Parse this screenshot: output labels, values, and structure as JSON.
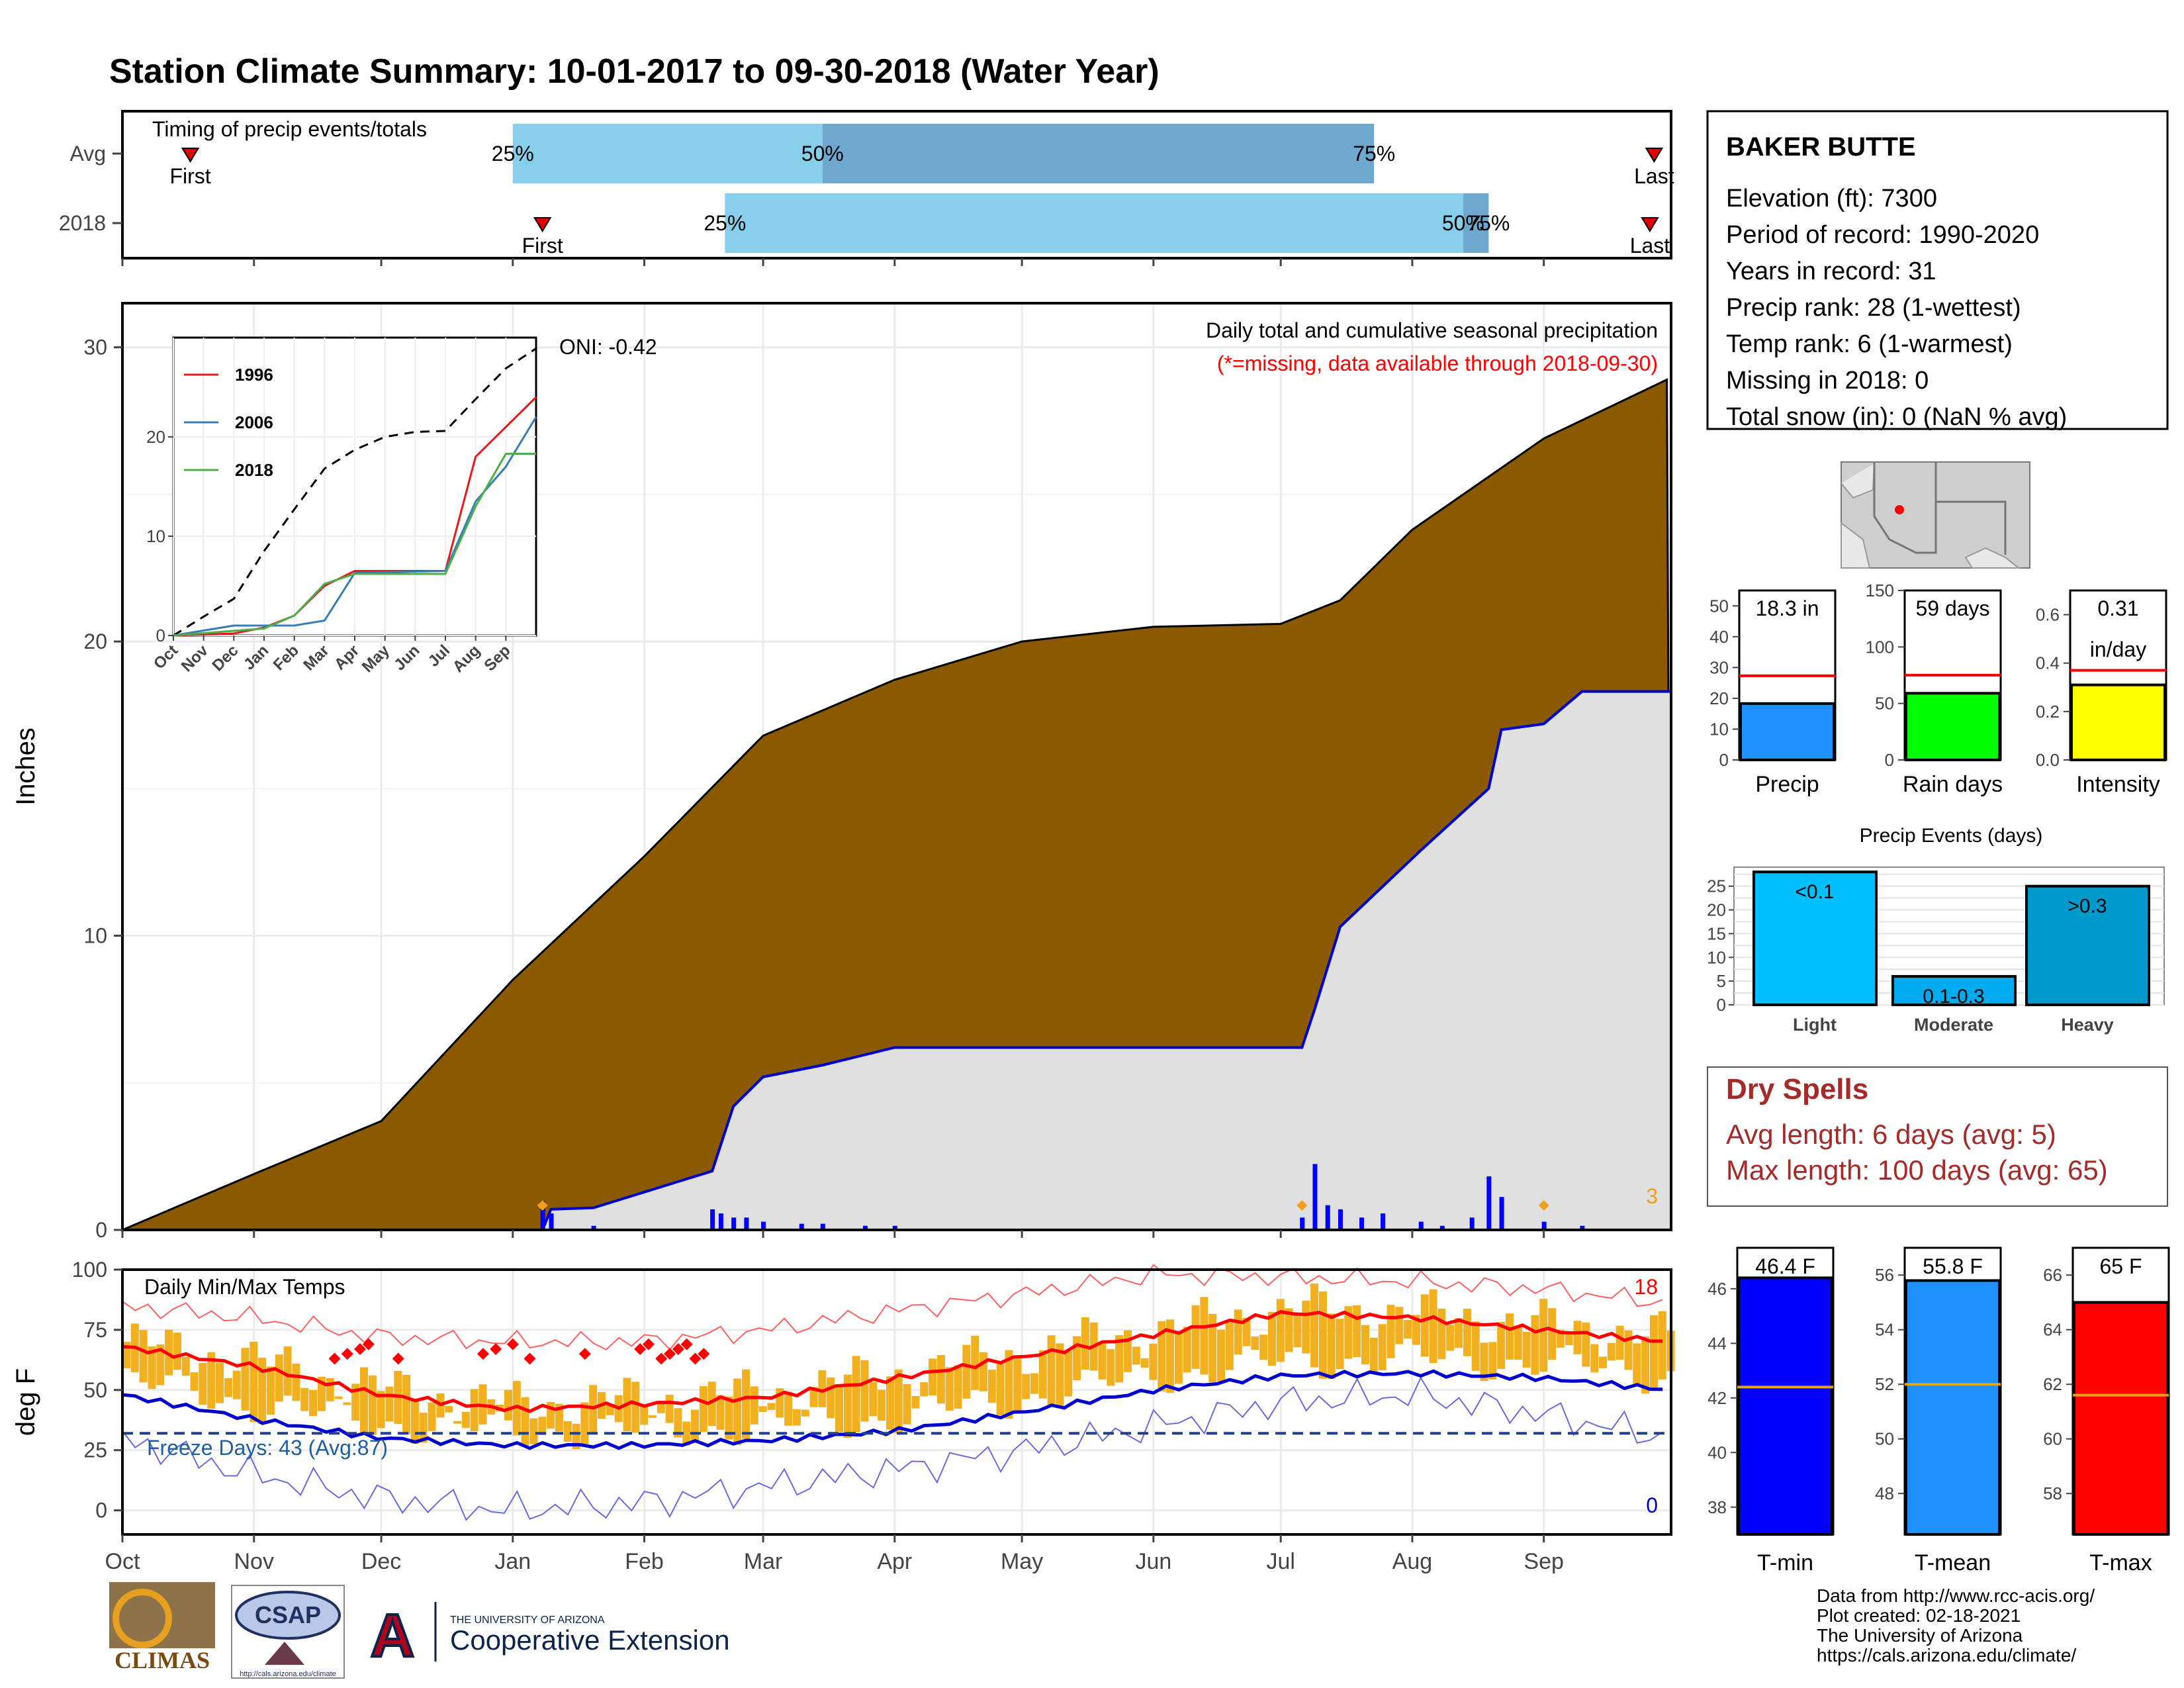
{
  "title": "Station Climate Summary: 10-01-2017 to 09-30-2018 (Water Year)",
  "months": [
    "Oct",
    "Nov",
    "Dec",
    "Jan",
    "Feb",
    "Mar",
    "Apr",
    "May",
    "Jun",
    "Jul",
    "Aug",
    "Sep"
  ],
  "timing": {
    "label": "Timing of precip events/totals",
    "rows": [
      {
        "name": "Avg",
        "first_label": "First",
        "last_label": "Last",
        "p25": "25%",
        "p50": "50%",
        "p75": "75%"
      },
      {
        "name": "2018",
        "first_label": "First",
        "last_label": "Last",
        "p25": "25%",
        "p50": "50%",
        "p75": "75%"
      }
    ]
  },
  "precip_panel": {
    "ylabel": "Inches",
    "yticks": [
      "0",
      "10",
      "20",
      "30"
    ],
    "caption": "Daily total and cumulative seasonal precipitation",
    "missing_note": "(*=missing, data available through 2018-09-30)",
    "oni": "ONI: -0.42",
    "corner_count": "3",
    "inset": {
      "yticks": [
        "0",
        "10",
        "20"
      ],
      "xticks": [
        "Oct",
        "Nov",
        "Dec",
        "Jan",
        "Feb",
        "Mar",
        "Apr",
        "May",
        "Jun",
        "Jul",
        "Aug",
        "Sep"
      ],
      "legend": [
        {
          "name": "1996",
          "color": "#e41a1c"
        },
        {
          "name": "2006",
          "color": "#377eb8"
        },
        {
          "name": "2018",
          "color": "#4daf4a"
        }
      ]
    }
  },
  "temp_panel": {
    "ylabel": "deg F",
    "yticks": [
      "0",
      "25",
      "50",
      "75",
      "100"
    ],
    "caption": "Daily Min/Max Temps",
    "freeze_label": "Freeze Days: 43 (Avg:87)",
    "record_high_count": "18",
    "record_low_count": "0"
  },
  "station": {
    "name": "BAKER BUTTE",
    "lines": [
      "Elevation (ft): 7300",
      "Period of record: 1990-2020",
      "Years in record: 31",
      "Precip rank: 28 (1-wettest)",
      "Temp rank: 6 (1-warmest)",
      "Missing in 2018: 0",
      "Total snow (in): 0 (NaN % avg)"
    ]
  },
  "mini_bars": [
    {
      "label": "Precip",
      "value_text": "18.3 in",
      "yticks": [
        "0",
        "10",
        "20",
        "30",
        "40",
        "50"
      ]
    },
    {
      "label": "Rain days",
      "value_text": "59 days",
      "yticks": [
        "0",
        "50",
        "100",
        "150"
      ]
    },
    {
      "label": "Intensity",
      "value_text": "0.31",
      "value_unit": "in/day",
      "yticks": [
        "0.0",
        "0.2",
        "0.4",
        "0.6"
      ]
    }
  ],
  "events": {
    "title": "Precip Events (days)",
    "yticks": [
      "0",
      "5",
      "10",
      "15",
      "20",
      "25"
    ],
    "bars": [
      {
        "label": "Light",
        "text": "<0.1"
      },
      {
        "label": "Moderate",
        "text": "0.1-0.3"
      },
      {
        "label": "Heavy",
        "text": ">0.3"
      }
    ]
  },
  "dry_spells": {
    "title": "Dry Spells",
    "avg": "Avg length: 6 days (avg: 5)",
    "max": "Max length: 100 days (avg: 65)"
  },
  "temp_bars": [
    {
      "label": "T-min",
      "value_text": "46.4 F",
      "yticks": [
        "38",
        "40",
        "42",
        "44",
        "46"
      ]
    },
    {
      "label": "T-mean",
      "value_text": "55.8 F",
      "yticks": [
        "48",
        "50",
        "52",
        "54",
        "56"
      ]
    },
    {
      "label": "T-max",
      "value_text": "65 F",
      "yticks": [
        "58",
        "60",
        "62",
        "64",
        "66"
      ]
    }
  ],
  "credits": [
    "Data from http://www.rcc-acis.org/",
    "Plot created: 02-18-2021",
    "The University of Arizona",
    "https://cals.arizona.edu/climate/"
  ],
  "logos": {
    "climas": "CLIMAS",
    "csap": "CSAP",
    "csap_url": "http://cals.arizona.edu/climate",
    "ua_small": "THE UNIVERSITY OF ARIZONA",
    "ua_big": "Cooperative Extension"
  },
  "colors": {
    "title": "#8b2500",
    "brown": "#8b5a00",
    "gray": "#e0e0e0",
    "cum_line": "#0000cd",
    "daily_bar": "#0000ff",
    "temp_bar": "#f0b020",
    "avg_max": "#ff0000",
    "avg_min": "#0000cd",
    "record_high": "#ff6060",
    "record_low": "#6a6ae0",
    "freeze_line": "#1f3f8f",
    "light_blue": "#87ceeb",
    "mid_blue": "#6fa8cf",
    "precip_bar": "#1e90ff",
    "rain_days_bar": "#00ff00",
    "intensity_bar": "#ffff00",
    "light_bar": "#00bfff",
    "moderate_bar": "#00aaee",
    "heavy_bar": "#0099cc",
    "tmin_bar": "#0000ff",
    "tmean_bar": "#1e90ff",
    "tmax_bar": "#ff0000",
    "dry_spell_text": "#a52a2a"
  },
  "chart_data": [
    {
      "type": "bar",
      "name": "timing",
      "rows": [
        {
          "name": "Avg",
          "first": "2017-10-17",
          "p25": "2018-01-01",
          "p50": "2018-03-15",
          "p75": "2018-07-23",
          "last": "2018-09-27"
        },
        {
          "name": "2018",
          "first": "2018-01-08",
          "p25": "2018-02-20",
          "p50": "2018-08-13",
          "p75": "2018-08-19",
          "last": "2018-09-26"
        }
      ]
    },
    {
      "type": "area",
      "name": "cumulative_precip",
      "ylabel": "Inches",
      "ylim": [
        0,
        31.5
      ],
      "series": [
        {
          "name": "Average cumulative",
          "dates": [
            "2017-10-01",
            "2017-11-01",
            "2017-12-01",
            "2018-01-01",
            "2018-02-01",
            "2018-03-01",
            "2018-04-01",
            "2018-05-01",
            "2018-06-01",
            "2018-07-01",
            "2018-07-15",
            "2018-08-01",
            "2018-09-01",
            "2018-09-30"
          ],
          "values": [
            0.0,
            1.9,
            3.7,
            8.5,
            12.7,
            16.8,
            18.7,
            20.0,
            20.5,
            20.6,
            21.4,
            23.8,
            26.9,
            28.9
          ]
        },
        {
          "name": "2018 cumulative",
          "dates": [
            "2017-10-01",
            "2018-01-08",
            "2018-01-10",
            "2018-01-20",
            "2018-02-17",
            "2018-02-22",
            "2018-03-01",
            "2018-03-15",
            "2018-04-01",
            "2018-07-06",
            "2018-07-09",
            "2018-07-15",
            "2018-08-03",
            "2018-08-19",
            "2018-08-22",
            "2018-09-01",
            "2018-09-10",
            "2018-09-30"
          ],
          "values": [
            0.0,
            0.0,
            0.7,
            0.75,
            2.0,
            4.2,
            5.2,
            5.6,
            6.2,
            6.2,
            7.5,
            10.3,
            12.9,
            15.0,
            17.0,
            17.2,
            18.3,
            18.3
          ]
        }
      ],
      "daily_bars_dates": [
        "2018-01-08",
        "2018-01-10",
        "2018-01-20",
        "2018-02-17",
        "2018-02-19",
        "2018-02-22",
        "2018-02-25",
        "2018-03-01",
        "2018-03-10",
        "2018-03-15",
        "2018-03-25",
        "2018-04-01",
        "2018-07-06",
        "2018-07-09",
        "2018-07-12",
        "2018-07-15",
        "2018-07-20",
        "2018-07-25",
        "2018-08-03",
        "2018-08-08",
        "2018-08-15",
        "2018-08-19",
        "2018-08-22",
        "2018-09-01",
        "2018-09-10"
      ],
      "daily_bars_values": [
        0.7,
        0.4,
        0.1,
        0.5,
        0.4,
        0.3,
        0.3,
        0.2,
        0.15,
        0.15,
        0.1,
        0.1,
        0.3,
        1.6,
        0.6,
        0.5,
        0.3,
        0.4,
        0.2,
        0.1,
        0.3,
        1.3,
        0.8,
        0.2,
        0.1
      ]
    },
    {
      "type": "line",
      "name": "inset_cumulative",
      "ylim": [
        0,
        30
      ],
      "series": [
        {
          "name": "Average",
          "months": [
            "Oct",
            "Nov",
            "Dec",
            "Jan",
            "Feb",
            "Mar",
            "Apr",
            "May",
            "Jun",
            "Jul",
            "Aug",
            "Sep",
            "Oct-end"
          ],
          "values": [
            0,
            1.9,
            3.7,
            8.5,
            12.7,
            16.8,
            18.7,
            20.0,
            20.5,
            20.6,
            23.8,
            26.9,
            28.9
          ]
        },
        {
          "name": "1996",
          "months": [
            "Oct",
            "Dec",
            "Jan",
            "Feb",
            "Mar",
            "Apr",
            "Jul",
            "Aug",
            "Sep",
            "Oct-end"
          ],
          "values": [
            0,
            0.2,
            0.8,
            2.0,
            5.0,
            6.5,
            6.5,
            18.0,
            21.0,
            24.0
          ]
        },
        {
          "name": "2006",
          "months": [
            "Oct",
            "Dec",
            "Jan",
            "Feb",
            "Mar",
            "Apr",
            "Jul",
            "Aug",
            "Sep",
            "Oct-end"
          ],
          "values": [
            0,
            1.0,
            1.0,
            1.0,
            1.5,
            6.3,
            6.5,
            13.5,
            17.0,
            22.0
          ]
        },
        {
          "name": "2018",
          "months": [
            "Oct",
            "Jan",
            "Feb",
            "Mar",
            "Apr",
            "Jul",
            "Aug",
            "Sep",
            "Oct-end"
          ],
          "values": [
            0,
            0.7,
            2.0,
            5.2,
            6.2,
            6.2,
            13.0,
            18.3,
            18.3
          ]
        }
      ]
    },
    {
      "type": "line",
      "name": "temperatures",
      "ylabel": "deg F",
      "ylim": [
        -10,
        100
      ],
      "series": [
        {
          "name": "Avg max",
          "months": [
            "Oct",
            "Nov",
            "Dec",
            "Jan",
            "Feb",
            "Mar",
            "Apr",
            "May",
            "Jun",
            "Jul",
            "Aug",
            "Sep",
            "Oct-end"
          ],
          "values": [
            68,
            60,
            48,
            42,
            44,
            47,
            55,
            64,
            73,
            82,
            80,
            75,
            70
          ]
        },
        {
          "name": "Avg min",
          "months": [
            "Oct",
            "Nov",
            "Dec",
            "Jan",
            "Feb",
            "Mar",
            "Apr",
            "May",
            "Jun",
            "Jul",
            "Aug",
            "Sep",
            "Oct-end"
          ],
          "values": [
            48,
            38,
            30,
            27,
            27,
            29,
            33,
            41,
            50,
            56,
            57,
            55,
            50
          ]
        },
        {
          "name": "Record max",
          "months": [
            "Oct",
            "Nov",
            "Dec",
            "Jan",
            "Feb",
            "Mar",
            "Apr",
            "May",
            "Jun",
            "Jul",
            "Aug",
            "Sep",
            "Oct-end"
          ],
          "values": [
            85,
            80,
            72,
            70,
            70,
            75,
            83,
            90,
            98,
            97,
            95,
            92,
            86
          ]
        },
        {
          "name": "Record min",
          "months": [
            "Oct",
            "Nov",
            "Dec",
            "Jan",
            "Feb",
            "Mar",
            "Apr",
            "May",
            "Jun",
            "Jul",
            "Aug",
            "Sep",
            "Oct-end"
          ],
          "values": [
            30,
            15,
            5,
            0,
            3,
            10,
            17,
            25,
            35,
            45,
            48,
            40,
            30
          ]
        }
      ],
      "freeze_threshold": 32
    },
    {
      "type": "bar",
      "name": "season_totals",
      "categories": [
        "Precip",
        "Rain days",
        "Intensity"
      ],
      "values": [
        18.3,
        59,
        0.31
      ],
      "averages": [
        27.3,
        75,
        0.37
      ],
      "ylims": [
        [
          0,
          55
        ],
        [
          0,
          150
        ],
        [
          0,
          0.7
        ]
      ]
    },
    {
      "type": "bar",
      "name": "precip_events",
      "title": "Precip Events (days)",
      "categories": [
        "Light",
        "Moderate",
        "Heavy"
      ],
      "values": [
        28,
        6,
        25
      ],
      "ylim": [
        0,
        29
      ]
    },
    {
      "type": "bar",
      "name": "temperature_means",
      "categories": [
        "T-min",
        "T-mean",
        "T-max"
      ],
      "values": [
        46.4,
        55.8,
        65
      ],
      "averages": [
        42.4,
        52.0,
        61.6
      ],
      "ylims": [
        [
          37,
          47.5
        ],
        [
          46.5,
          57
        ],
        [
          56.5,
          67
        ]
      ]
    }
  ]
}
